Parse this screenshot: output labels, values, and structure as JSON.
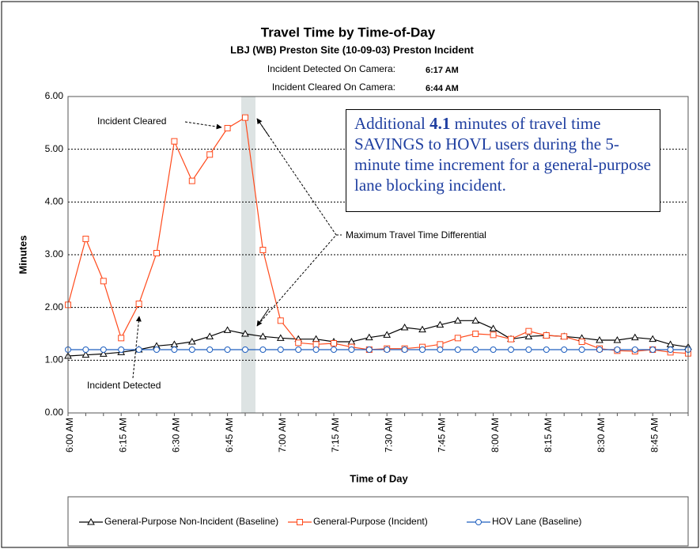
{
  "chart_data": {
    "type": "line",
    "title": "Travel Time by Time-of-Day",
    "subtitle": "LBJ (WB) Preston Site (10-09-03)  Preston Incident",
    "info": [
      {
        "label": "Incident Detected On Camera:",
        "value": "6:17 AM"
      },
      {
        "label": "Incident Cleared On Camera:",
        "value": "6:44 AM"
      }
    ],
    "xlabel": "Time of Day",
    "ylabel": "Minutes",
    "categories": [
      "6:00 AM",
      null,
      null,
      "6:15 AM",
      null,
      null,
      "6:30 AM",
      null,
      null,
      "6:45 AM",
      null,
      null,
      "7:00 AM",
      null,
      null,
      "7:15 AM",
      null,
      null,
      "7:30 AM",
      null,
      null,
      "7:45 AM",
      null,
      null,
      "8:00 AM",
      null,
      null,
      "8:15 AM",
      null,
      null,
      "8:30 AM",
      null,
      null,
      "8:45 AM",
      null,
      null
    ],
    "ylim": [
      0,
      6
    ],
    "yticks": [
      {
        "value": 0,
        "label": "0.00"
      },
      {
        "value": 1,
        "label": "1.00"
      },
      {
        "value": 2,
        "label": "2.00"
      },
      {
        "value": 3,
        "label": "3.00"
      },
      {
        "value": 4,
        "label": "4.00"
      },
      {
        "value": 5,
        "label": "5.00"
      },
      {
        "value": 6,
        "label": "6.00"
      }
    ],
    "grid": true,
    "series": [
      {
        "name": "General-Purpose Non-Incident (Baseline)",
        "color": "#000000",
        "marker": "triangle",
        "values": [
          1.08,
          1.1,
          1.12,
          1.15,
          1.2,
          1.27,
          1.3,
          1.35,
          1.45,
          1.57,
          1.5,
          1.45,
          1.42,
          1.4,
          1.4,
          1.35,
          1.35,
          1.43,
          1.48,
          1.62,
          1.58,
          1.67,
          1.75,
          1.75,
          1.6,
          1.4,
          1.45,
          1.47,
          1.45,
          1.42,
          1.38,
          1.38,
          1.43,
          1.4,
          1.3,
          1.25
        ]
      },
      {
        "name": "General-Purpose (Incident)",
        "color": "#ff4a1c",
        "marker": "square",
        "values": [
          2.05,
          3.3,
          2.5,
          1.42,
          2.07,
          3.03,
          5.15,
          4.4,
          4.9,
          5.4,
          5.6,
          3.09,
          1.75,
          1.33,
          1.3,
          1.32,
          1.25,
          1.2,
          1.22,
          1.22,
          1.25,
          1.3,
          1.42,
          1.5,
          1.48,
          1.4,
          1.55,
          1.47,
          1.45,
          1.35,
          1.22,
          1.18,
          1.17,
          1.2,
          1.15,
          1.13
        ]
      },
      {
        "name": "HOV Lane (Baseline)",
        "color": "#1f5fbf",
        "marker": "circle",
        "values": [
          1.2,
          1.2,
          1.2,
          1.2,
          1.2,
          1.2,
          1.2,
          1.2,
          1.2,
          1.2,
          1.2,
          1.2,
          1.2,
          1.2,
          1.2,
          1.2,
          1.2,
          1.2,
          1.2,
          1.2,
          1.2,
          1.2,
          1.2,
          1.2,
          1.2,
          1.2,
          1.2,
          1.2,
          1.2,
          1.2,
          1.2,
          1.2,
          1.2,
          1.2,
          1.2,
          1.2
        ]
      }
    ],
    "annotations": [
      "Incident Cleared",
      "Incident Detected",
      "Maximum Travel Time Differential"
    ],
    "callout": [
      "Additional ",
      "4.1",
      " minutes of travel time SAVINGS to HOVL users during the 5-minute time increment for a general-purpose lane blocking incident."
    ]
  }
}
